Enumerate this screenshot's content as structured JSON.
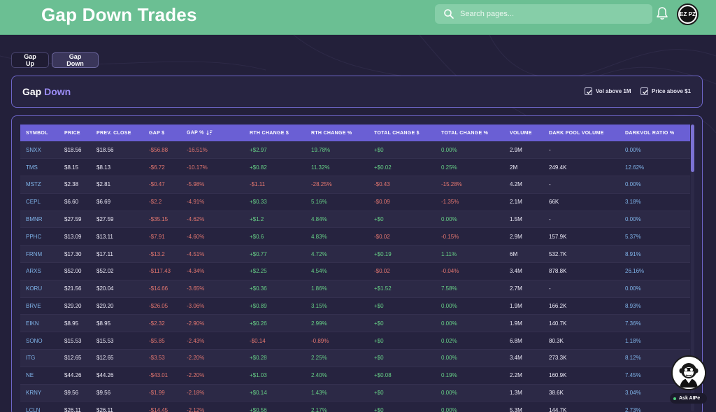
{
  "header": {
    "title": "Gap Down Trades",
    "search_placeholder": "Search pages...",
    "avatar_text": "EZ PZ"
  },
  "tabs": [
    {
      "label": "Gap Up",
      "active": false
    },
    {
      "label": "Gap Down",
      "active": true
    }
  ],
  "panel": {
    "title_prefix": "Gap",
    "title_accent": "Down",
    "filters": [
      {
        "label": "Vol above 1M",
        "checked": true
      },
      {
        "label": "Price above $1",
        "checked": true
      }
    ]
  },
  "table": {
    "columns": [
      "SYMBOL",
      "PRICE",
      "PREV. CLOSE",
      "GAP $",
      "GAP %",
      "RTH CHANGE $",
      "RTH CHANGE %",
      "TOTAL CHANGE $",
      "TOTAL CHANGE %",
      "VOLUME",
      "DARK POOL VOLUME",
      "DARKVOL RATIO %"
    ],
    "sorted_column": "GAP %",
    "rows": [
      [
        "SNXX",
        "$18.56",
        "$18.56",
        "-$56.88",
        "-16.51%",
        "+$2.97",
        "19.78%",
        "+$0",
        "0.00%",
        "2.9M",
        "-",
        "0.00%"
      ],
      [
        "TMS",
        "$8.15",
        "$8.13",
        "-$6.72",
        "-10.17%",
        "+$0.82",
        "11.32%",
        "+$0.02",
        "0.25%",
        "2M",
        "249.4K",
        "12.62%"
      ],
      [
        "MSTZ",
        "$2.38",
        "$2.81",
        "-$0.47",
        "-5.98%",
        "-$1.11",
        "-28.25%",
        "-$0.43",
        "-15.28%",
        "4.2M",
        "-",
        "0.00%"
      ],
      [
        "CEPL",
        "$6.60",
        "$6.69",
        "-$2.2",
        "-4.91%",
        "+$0.33",
        "5.16%",
        "-$0.09",
        "-1.35%",
        "2.1M",
        "66K",
        "3.18%"
      ],
      [
        "BMNR",
        "$27.59",
        "$27.59",
        "-$35.15",
        "-4.62%",
        "+$1.2",
        "4.84%",
        "+$0",
        "0.00%",
        "1.5M",
        "-",
        "0.00%"
      ],
      [
        "PPHC",
        "$13.09",
        "$13.11",
        "-$7.91",
        "-4.60%",
        "+$0.6",
        "4.83%",
        "-$0.02",
        "-0.15%",
        "2.9M",
        "157.9K",
        "5.37%"
      ],
      [
        "FRNM",
        "$17.30",
        "$17.11",
        "-$13.2",
        "-4.51%",
        "+$0.77",
        "4.72%",
        "+$0.19",
        "1.11%",
        "6M",
        "532.7K",
        "8.91%"
      ],
      [
        "ARXS",
        "$52.00",
        "$52.02",
        "-$117.43",
        "-4.34%",
        "+$2.25",
        "4.54%",
        "-$0.02",
        "-0.04%",
        "3.4M",
        "878.8K",
        "26.16%"
      ],
      [
        "KORU",
        "$21.56",
        "$20.04",
        "-$14.66",
        "-3.65%",
        "+$0.36",
        "1.86%",
        "+$1.52",
        "7.58%",
        "2.7M",
        "-",
        "0.00%"
      ],
      [
        "BRVE",
        "$29.20",
        "$29.20",
        "-$26.05",
        "-3.06%",
        "+$0.89",
        "3.15%",
        "+$0",
        "0.00%",
        "1.9M",
        "166.2K",
        "8.93%"
      ],
      [
        "EIKN",
        "$8.95",
        "$8.95",
        "-$2.32",
        "-2.90%",
        "+$0.26",
        "2.99%",
        "+$0",
        "0.00%",
        "1.9M",
        "140.7K",
        "7.36%"
      ],
      [
        "SONO",
        "$15.53",
        "$15.53",
        "-$5.85",
        "-2.43%",
        "-$0.14",
        "-0.89%",
        "+$0",
        "0.02%",
        "6.8M",
        "80.3K",
        "1.18%"
      ],
      [
        "ITG",
        "$12.65",
        "$12.65",
        "-$3.53",
        "-2.20%",
        "+$0.28",
        "2.25%",
        "+$0",
        "0.00%",
        "3.4M",
        "273.3K",
        "8.12%"
      ],
      [
        "NE",
        "$44.26",
        "$44.26",
        "-$43.01",
        "-2.20%",
        "+$1.03",
        "2.40%",
        "+$0.08",
        "0.19%",
        "2.2M",
        "160.9K",
        "7.45%"
      ],
      [
        "KRNY",
        "$9.56",
        "$9.56",
        "-$1.99",
        "-2.18%",
        "+$0.14",
        "1.43%",
        "+$0",
        "0.00%",
        "1.3M",
        "38.6K",
        "3.04%"
      ],
      [
        "LCLN",
        "$26.11",
        "$26.11",
        "-$14.45",
        "-2.12%",
        "+$0.56",
        "2.17%",
        "+$0",
        "0.00%",
        "5.3M",
        "144.7K",
        "2.73%"
      ]
    ]
  },
  "assistant": {
    "label": "Ask AIPe"
  },
  "colors": {
    "header_bg": "#6bbf93",
    "accent": "#6a5fd4",
    "positive": "#66cf86",
    "negative": "#e2766f",
    "link": "#7fb3e8"
  }
}
